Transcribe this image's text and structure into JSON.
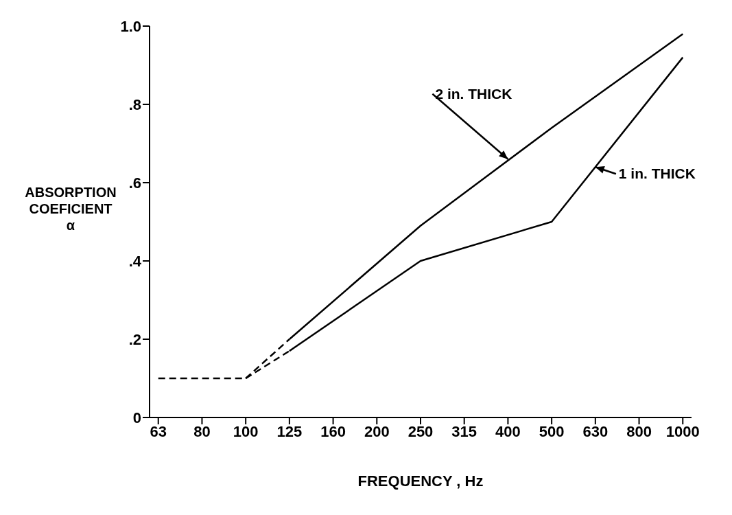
{
  "chart_data": {
    "type": "line",
    "xlabel": "FREQUENCY , Hz",
    "ylabel": "ABSORPTION COEFICIENT α",
    "categories": [
      "63",
      "80",
      "100",
      "125",
      "160",
      "200",
      "250",
      "315",
      "400",
      "500",
      "630",
      "800",
      "1000"
    ],
    "ylim": [
      0,
      1
    ],
    "yticks": [
      0,
      {
        "value": 0.2,
        "label": ".2"
      },
      {
        "value": 0.4,
        "label": ".4"
      },
      {
        "value": 0.6,
        "label": ".6"
      },
      {
        "value": 0.8,
        "label": ".8"
      },
      {
        "value": 1,
        "label": "1.0"
      }
    ],
    "grid": false,
    "legend": false,
    "marker": "none",
    "series": [
      {
        "color": "#000000",
        "line_style": "dashed",
        "values": [
          0.1,
          0.1,
          0.1,
          null,
          null,
          null,
          null,
          null,
          null,
          null,
          null,
          null,
          null
        ]
      },
      {
        "color": "#000000",
        "line_style": "dashed",
        "values": [
          null,
          null,
          0.1,
          0.2,
          null,
          null,
          null,
          null,
          null,
          null,
          null,
          null,
          null
        ]
      },
      {
        "color": "#000000",
        "line_style": "dashed",
        "values": [
          null,
          null,
          0.1,
          0.17,
          null,
          null,
          null,
          null,
          null,
          null,
          null,
          null,
          null
        ]
      },
      {
        "color": "#000000",
        "line_style": "solid",
        "values": [
          null,
          null,
          null,
          0.2,
          null,
          null,
          0.49,
          null,
          null,
          0.74,
          null,
          null,
          0.98
        ]
      },
      {
        "color": "#000000",
        "line_style": "solid",
        "values": [
          null,
          null,
          null,
          0.17,
          null,
          null,
          0.4,
          null,
          null,
          0.5,
          null,
          null,
          0.92
        ]
      }
    ],
    "annotations": [
      {
        "text": "2 in. THICK",
        "x": "400",
        "y": 0.66
      },
      {
        "text": "1 in. THICK",
        "x": "630",
        "y": 0.64
      }
    ]
  }
}
